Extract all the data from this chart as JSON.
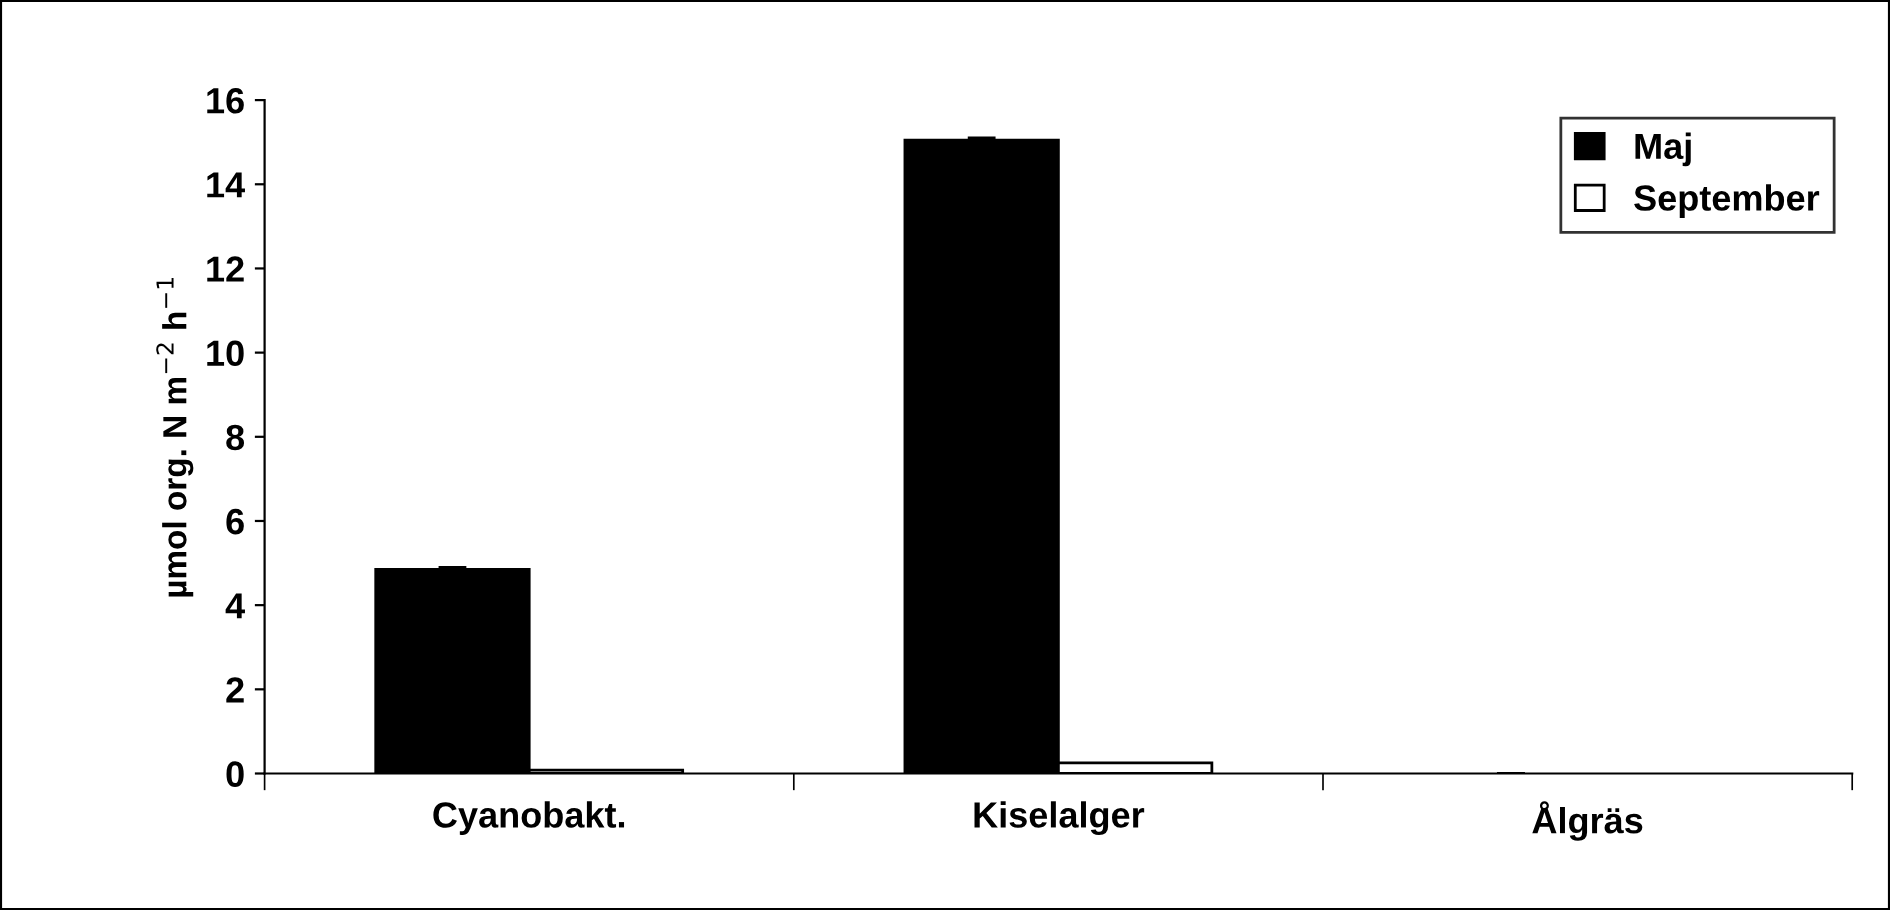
{
  "chart_data": {
    "type": "bar",
    "ylabel": "µmol org. N m$^{−2}$ h$^{−1}$",
    "categories": [
      "Cyanobakt.",
      "Kiselalger",
      "Ålgräs"
    ],
    "series": [
      {
        "name": "Maj",
        "color": "#000000",
        "values": [
          4.85,
          15.05,
          0
        ],
        "errors": [
          0.05,
          0.05,
          null
        ]
      },
      {
        "name": "September",
        "color": "#ffffff",
        "values": [
          0.08,
          0.25,
          0
        ]
      }
    ],
    "ylim": [
      0,
      16
    ],
    "yticks": [
      0,
      2,
      4,
      6,
      8,
      10,
      12,
      14,
      16
    ],
    "grid": false,
    "legend": "top right"
  }
}
